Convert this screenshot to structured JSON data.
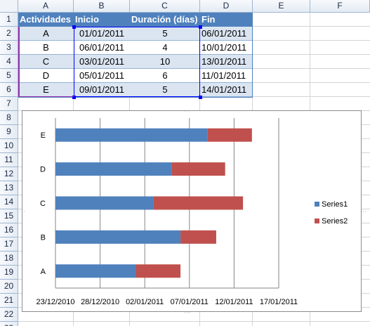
{
  "columns": [
    "A",
    "B",
    "C",
    "D",
    "E",
    "F"
  ],
  "rows": [
    "1",
    "2",
    "3",
    "4",
    "5",
    "6",
    "7",
    "8",
    "9",
    "10",
    "11",
    "12",
    "13",
    "14",
    "15",
    "16",
    "17",
    "18",
    "19",
    "20",
    "21",
    "22",
    "23"
  ],
  "table": {
    "headers": [
      "Actividades",
      "Inicio",
      "Duración (días)",
      "Fin"
    ],
    "data": [
      [
        "A",
        "01/01/2011",
        "5",
        "06/01/2011"
      ],
      [
        "B",
        "06/01/2011",
        "4",
        "10/01/2011"
      ],
      [
        "C",
        "03/01/2011",
        "10",
        "13/01/2011"
      ],
      [
        "D",
        "05/01/2011",
        "6",
        "11/01/2011"
      ],
      [
        "E",
        "09/01/2011",
        "5",
        "14/01/2011"
      ]
    ]
  },
  "colors": {
    "table_header": "#4f81bd",
    "table_band": "#dbe5f1",
    "series1": "#4f81bd",
    "series2": "#c0504d"
  },
  "chart_data": {
    "type": "bar",
    "orientation": "horizontal",
    "stacked": true,
    "categories": [
      "A",
      "B",
      "C",
      "D",
      "E"
    ],
    "series": [
      {
        "name": "Series1",
        "values": [
          "01/01/2011",
          "06/01/2011",
          "03/01/2011",
          "05/01/2011",
          "09/01/2011"
        ]
      },
      {
        "name": "Series2",
        "values": [
          5,
          4,
          10,
          6,
          5
        ]
      }
    ],
    "x_ticks": [
      "23/12/2010",
      "28/12/2010",
      "02/01/2011",
      "07/01/2011",
      "12/01/2011",
      "17/01/2011"
    ],
    "xlim": [
      "23/12/2010",
      "17/01/2011"
    ],
    "gridlines": "vertical",
    "legend": "right"
  }
}
